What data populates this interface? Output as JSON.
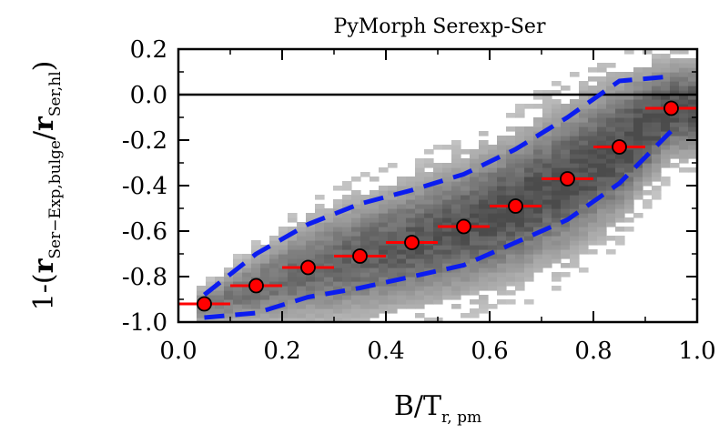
{
  "chart_data": {
    "type": "scatter",
    "title": "PyMorph Serexp-Ser",
    "xlabel": {
      "main": "B/T",
      "sub": "r, pm"
    },
    "ylabel": {
      "prefix": "1-(",
      "r1": "r",
      "sub1": "Ser−Exp,bulge",
      "slash": "/",
      "r2": "r",
      "sub2": "Ser,hl",
      "suffix": ")"
    },
    "xlim": [
      0.0,
      1.0
    ],
    "ylim": [
      -1.0,
      0.2
    ],
    "xticks": [
      "0.0",
      "0.2",
      "0.4",
      "0.6",
      "0.8",
      "1.0"
    ],
    "yticks": [
      "-1.0",
      "-0.8",
      "-0.6",
      "-0.4",
      "-0.2",
      "0.0",
      "0.2"
    ],
    "reference_line": 0.0,
    "series": [
      {
        "name": "binned median",
        "marker": "red circle with horizontal error bar",
        "x": [
          0.05,
          0.15,
          0.25,
          0.35,
          0.45,
          0.55,
          0.65,
          0.75,
          0.85,
          0.95
        ],
        "y": [
          -0.92,
          -0.84,
          -0.76,
          -0.71,
          -0.65,
          -0.58,
          -0.49,
          -0.37,
          -0.23,
          -0.06
        ],
        "xerr": 0.05
      },
      {
        "name": "upper envelope",
        "style": "blue dashed",
        "x": [
          0.05,
          0.15,
          0.25,
          0.35,
          0.45,
          0.55,
          0.65,
          0.75,
          0.85,
          0.95
        ],
        "y": [
          -0.88,
          -0.7,
          -0.57,
          -0.48,
          -0.42,
          -0.35,
          -0.24,
          -0.1,
          0.06,
          0.08
        ]
      },
      {
        "name": "lower envelope",
        "style": "blue dashed",
        "x": [
          0.05,
          0.15,
          0.25,
          0.35,
          0.45,
          0.55,
          0.65,
          0.75,
          0.85,
          0.95
        ],
        "y": [
          -0.98,
          -0.96,
          -0.89,
          -0.85,
          -0.8,
          -0.75,
          -0.65,
          -0.55,
          -0.39,
          -0.16
        ]
      }
    ],
    "density": {
      "description": "grey 2D histogram of galaxies",
      "center": [
        -0.93,
        -0.85,
        -0.77,
        -0.71,
        -0.65,
        -0.58,
        -0.49,
        -0.37,
        -0.23,
        -0.06
      ],
      "spread": [
        0.05,
        0.1,
        0.14,
        0.16,
        0.17,
        0.18,
        0.19,
        0.2,
        0.19,
        0.13
      ]
    }
  }
}
